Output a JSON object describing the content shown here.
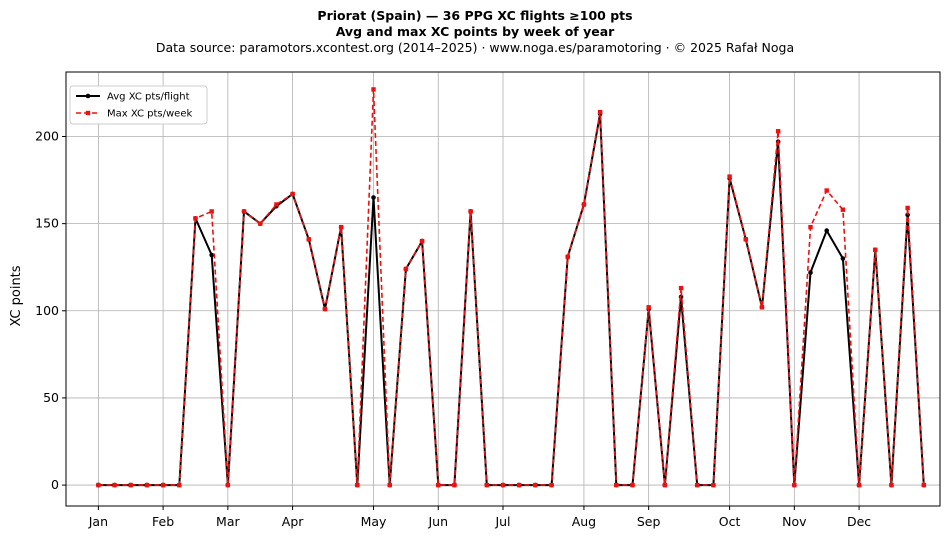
{
  "chart_data": {
    "type": "line",
    "title": "Priorat (Spain)  —  36 PPG XC flights ≥100 pts",
    "subtitle": "Avg and max XC points by week of year",
    "source": "Data source: paramotors.xcontest.org (2014–2025)  ·  www.noga.es/paramotoring  ·  © 2025 Rafał Noga",
    "xlabel": "",
    "ylabel": "XC points",
    "xlim": [
      -1,
      53
    ],
    "ylim": [
      -12,
      237
    ],
    "yticks": [
      0,
      50,
      100,
      150,
      200
    ],
    "month_ticks": [
      {
        "week": 1,
        "label": "Jan"
      },
      {
        "week": 5,
        "label": "Feb"
      },
      {
        "week": 9,
        "label": "Mar"
      },
      {
        "week": 13,
        "label": "Apr"
      },
      {
        "week": 18,
        "label": "May"
      },
      {
        "week": 22,
        "label": "Jun"
      },
      {
        "week": 26,
        "label": "Jul"
      },
      {
        "week": 31,
        "label": "Aug"
      },
      {
        "week": 35,
        "label": "Sep"
      },
      {
        "week": 40,
        "label": "Oct"
      },
      {
        "week": 44,
        "label": "Nov"
      },
      {
        "week": 48,
        "label": "Dec"
      }
    ],
    "grid": true,
    "legend_position": "top-left",
    "x": [
      1,
      2,
      3,
      4,
      5,
      6,
      7,
      8,
      9,
      10,
      11,
      12,
      13,
      14,
      15,
      16,
      17,
      18,
      19,
      20,
      21,
      22,
      23,
      24,
      25,
      26,
      27,
      28,
      29,
      30,
      31,
      32,
      33,
      34,
      35,
      36,
      37,
      38,
      39,
      40,
      41,
      42,
      43,
      44,
      45,
      46,
      47,
      48,
      49,
      50,
      51,
      52
    ],
    "series": [
      {
        "name": "Avg XC pts/flight",
        "color": "#000000",
        "style": "solid",
        "marker": "circle",
        "values": [
          0,
          0,
          0,
          0,
          0,
          0,
          153,
          132,
          0,
          157,
          150,
          160,
          167,
          141,
          101,
          148,
          0,
          165,
          0,
          124,
          140,
          0,
          0,
          157,
          0,
          0,
          0,
          0,
          0,
          131,
          161,
          213,
          0,
          0,
          101,
          0,
          108,
          0,
          0,
          176,
          141,
          102,
          197,
          0,
          122,
          146,
          130,
          0,
          135,
          0,
          155,
          0
        ]
      },
      {
        "name": "Max XC pts/week",
        "color": "#ee1111",
        "style": "dashed",
        "marker": "square",
        "values": [
          0,
          0,
          0,
          0,
          0,
          0,
          153,
          157,
          0,
          157,
          150,
          161,
          167,
          141,
          101,
          148,
          0,
          227,
          0,
          124,
          140,
          0,
          0,
          157,
          0,
          0,
          0,
          0,
          0,
          131,
          161,
          214,
          0,
          0,
          102,
          0,
          113,
          0,
          0,
          177,
          141,
          102,
          203,
          0,
          148,
          169,
          158,
          0,
          135,
          0,
          159,
          0
        ]
      }
    ]
  }
}
